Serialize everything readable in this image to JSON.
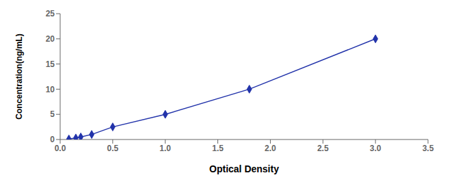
{
  "chart_data": {
    "type": "line",
    "x": [
      0.083,
      0.149,
      0.196,
      0.3,
      0.5,
      1.0,
      1.8,
      3.0
    ],
    "values": [
      0.1,
      0.3,
      0.5,
      1.0,
      2.5,
      5.0,
      10.0,
      20.0
    ],
    "color": "#2233aa",
    "marker": "diamond",
    "xlabel": "Optical Density",
    "ylabel": "Concentration(ng/mL)",
    "xlim": [
      0,
      3.5
    ],
    "ylim": [
      0,
      25
    ],
    "xticks": [
      {
        "value": 0,
        "label": "0.0"
      },
      0.5,
      {
        "value": 1.0,
        "label": "1.0"
      },
      1.5,
      {
        "value": 2.0,
        "label": "2.0"
      },
      2.5,
      {
        "value": 3.0,
        "label": "3.0"
      },
      3.5
    ],
    "yticks": [
      0,
      5,
      10,
      15,
      20,
      25
    ]
  }
}
